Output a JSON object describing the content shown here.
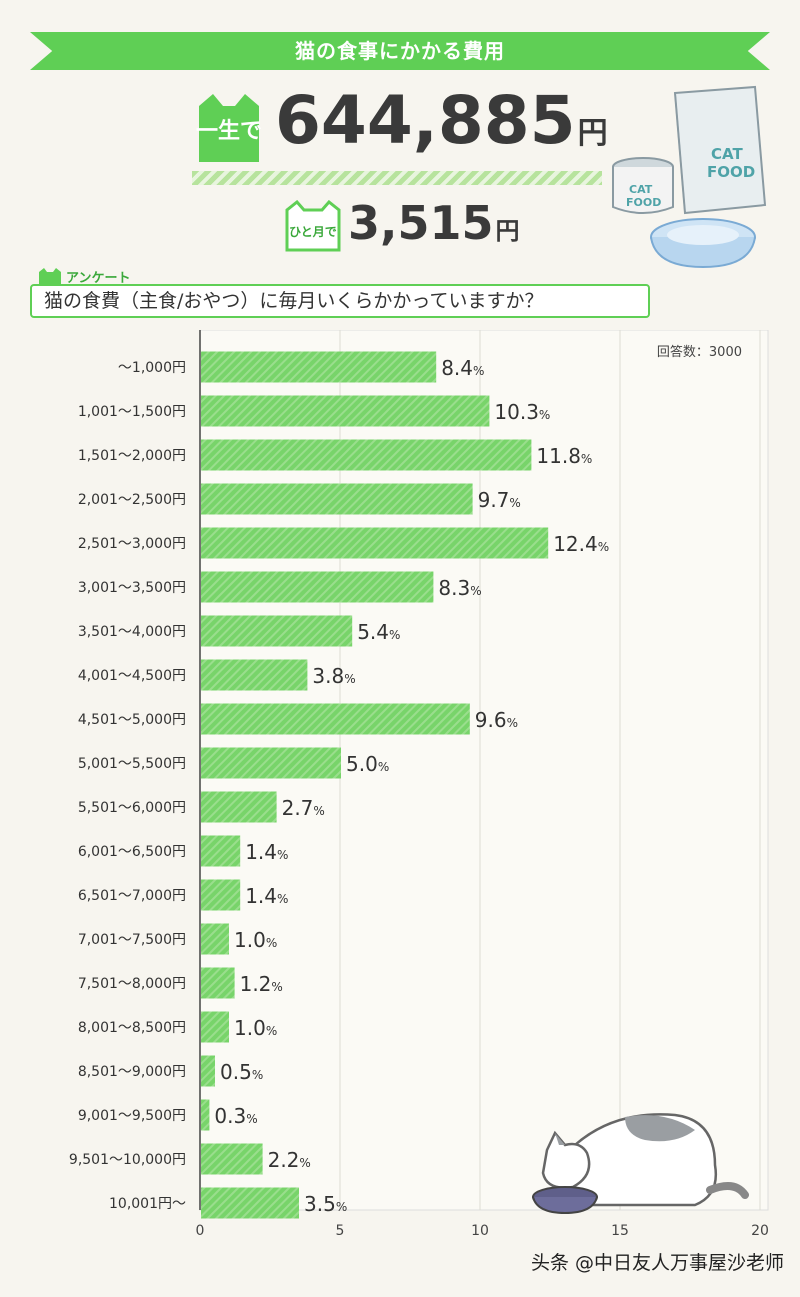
{
  "header": {
    "banner_title": "猫の食事にかかる費用",
    "lifetime_badge": "一生で",
    "lifetime_value": "644,885",
    "lifetime_unit": "円",
    "monthly_badge": "ひと月で",
    "monthly_value": "3,515",
    "monthly_unit": "円"
  },
  "illustration": {
    "bag_text_1": "CAT",
    "bag_text_2": "FOOD",
    "can_text_1": "CAT",
    "can_text_2": "FOOD"
  },
  "survey": {
    "label": "アンケート",
    "question": "猫の食費（主食/おやつ）に毎月いくらかかっていますか？"
  },
  "chart_data": {
    "type": "bar",
    "orientation": "horizontal",
    "note": "回答数：3000",
    "categories": [
      "～1,000円",
      "1,001～1,500円",
      "1,501～2,000円",
      "2,001～2,500円",
      "2,501～3,000円",
      "3,001～3,500円",
      "3,501～4,000円",
      "4,001～4,500円",
      "4,501～5,000円",
      "5,001～5,500円",
      "5,501～6,000円",
      "6,001～6,500円",
      "6,501～7,000円",
      "7,001～7,500円",
      "7,501～8,000円",
      "8,001～8,500円",
      "8,501～9,000円",
      "9,001～9,500円",
      "9,501～10,000円",
      "10,001円～"
    ],
    "values": [
      8.4,
      10.3,
      11.8,
      9.7,
      12.4,
      8.3,
      5.4,
      3.8,
      9.6,
      5.0,
      2.7,
      1.4,
      1.4,
      1.0,
      1.2,
      1.0,
      0.5,
      0.3,
      2.2,
      3.5
    ],
    "value_labels": [
      "8.4",
      "10.3",
      "11.8",
      "9.7",
      "12.4",
      "8.3",
      "5.4",
      "3.8",
      "9.6",
      "5.0",
      "2.7",
      "1.4",
      "1.4",
      "1.0",
      "1.2",
      "1.0",
      "0.5",
      "0.3",
      "2.2",
      "3.5"
    ],
    "value_unit": "%",
    "xlim": [
      0,
      20
    ],
    "xticks": [
      0,
      5,
      10,
      15,
      20
    ],
    "grid": true,
    "bar_color": "#78d46a"
  },
  "watermark": "头条 @中日友人万事屋沙老师"
}
